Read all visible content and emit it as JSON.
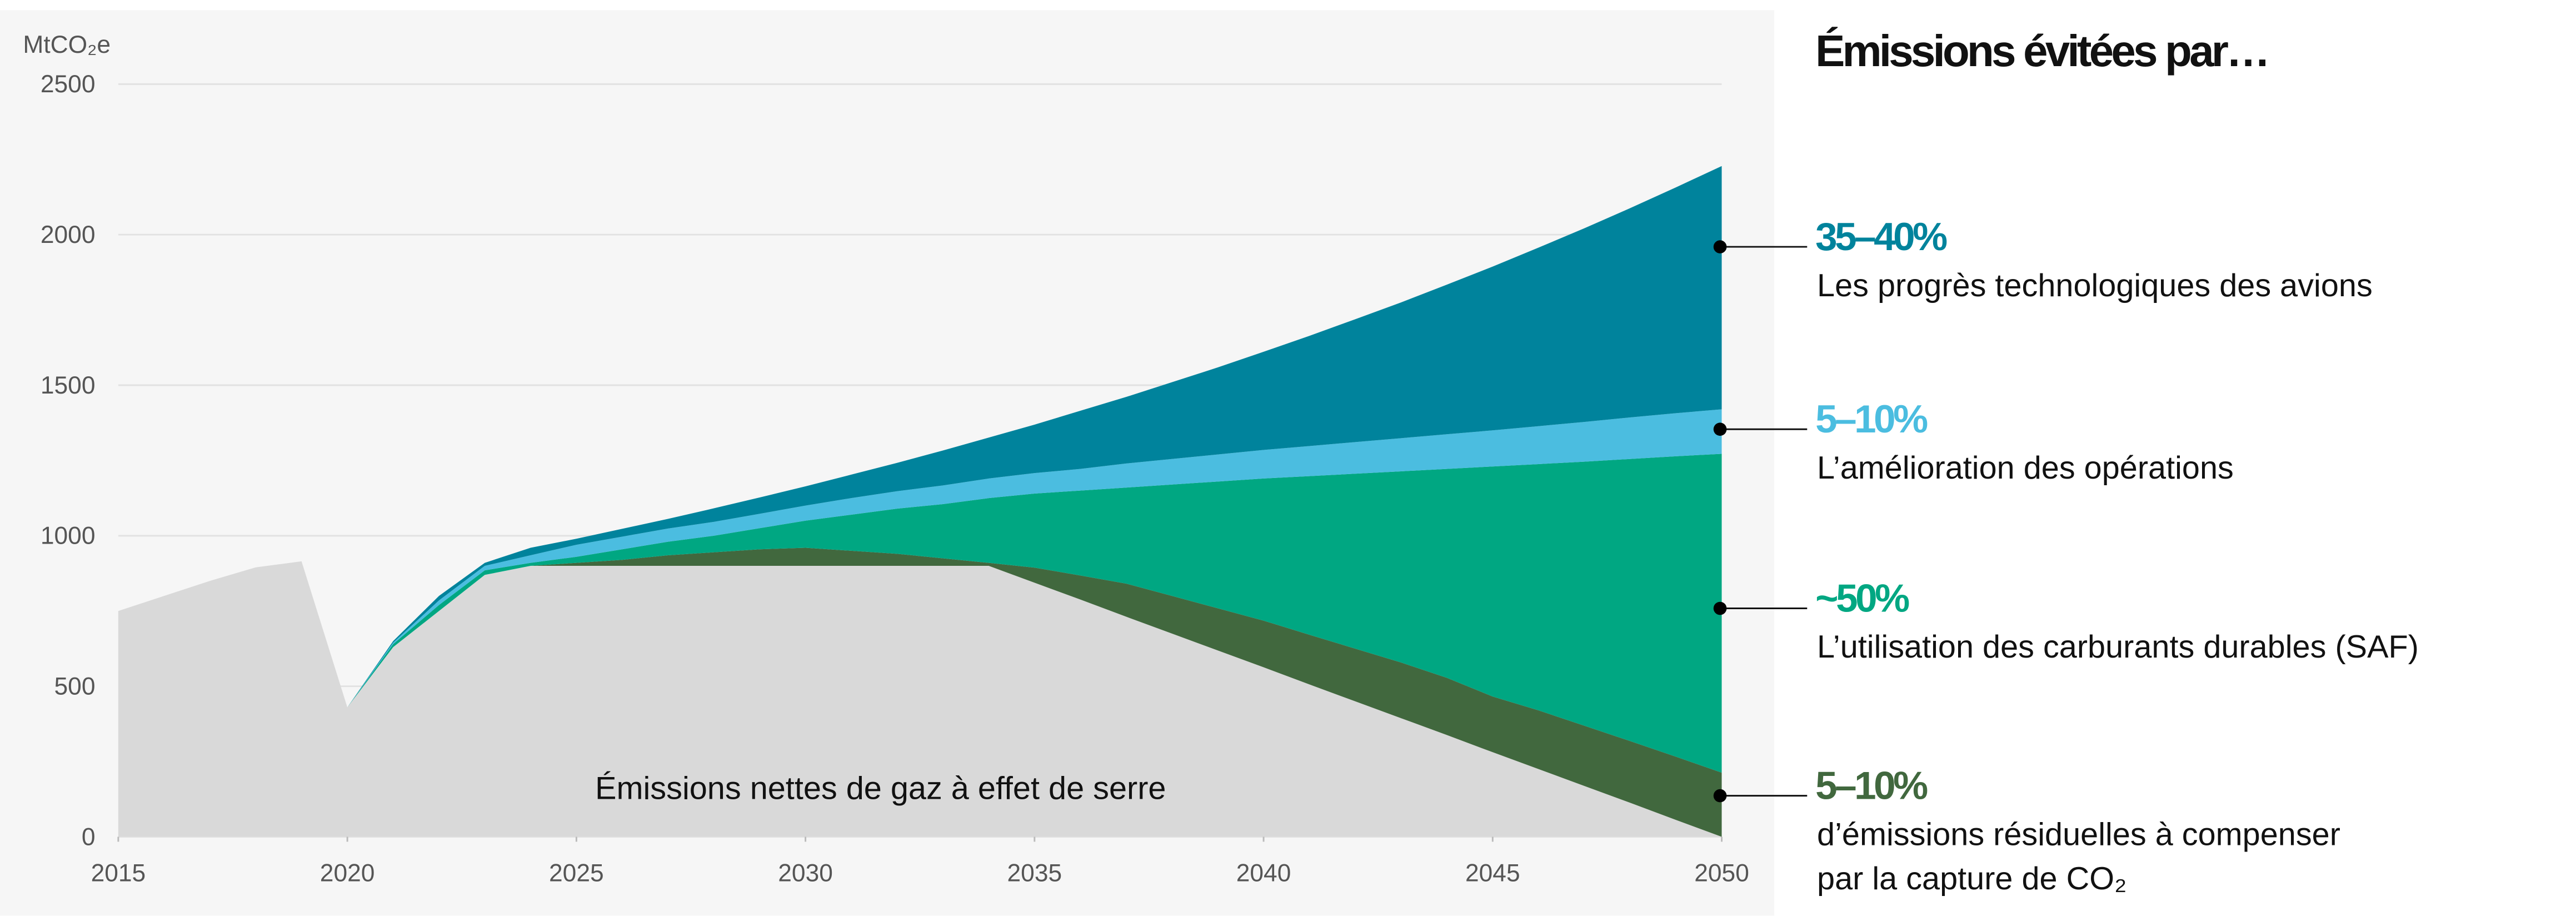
{
  "chart_data": {
    "type": "stacked_area",
    "ylabel": "MtCO₂e",
    "heading": "Émissions évitées par…",
    "x": [
      2015,
      2016,
      2017,
      2018,
      2019,
      2020,
      2021,
      2022,
      2023,
      2024,
      2025,
      2026,
      2027,
      2028,
      2029,
      2030,
      2031,
      2032,
      2033,
      2034,
      2035,
      2036,
      2037,
      2038,
      2039,
      2040,
      2041,
      2042,
      2043,
      2044,
      2045,
      2046,
      2047,
      2048,
      2049,
      2050
    ],
    "xlim": [
      2015,
      2050
    ],
    "xticks": [
      2015,
      2020,
      2025,
      2030,
      2035,
      2040,
      2045,
      2050
    ],
    "ylim": [
      0,
      2500
    ],
    "yticks": [
      0,
      500,
      1000,
      1500,
      2000,
      2500
    ],
    "grid": true,
    "series": [
      {
        "name": "Émissions nettes de gaz à effet de serre",
        "color": "#d9d9d9",
        "values": [
          750,
          800,
          850,
          895,
          915,
          430,
          630,
          750,
          870,
          900,
          900,
          900,
          900,
          900,
          900,
          900,
          900,
          900,
          900,
          900,
          844,
          788,
          731,
          675,
          619,
          563,
          506,
          450,
          394,
          338,
          281,
          225,
          169,
          113,
          56,
          0
        ]
      },
      {
        "share": "5–10%",
        "label": [
          "d’émissions résiduelles à compenser",
          "par la capture de CO₂"
        ],
        "color": "#41683e",
        "values": [
          0,
          0,
          0,
          0,
          0,
          0,
          0,
          0,
          0,
          0,
          10,
          20,
          35,
          45,
          55,
          60,
          50,
          40,
          25,
          10,
          50,
          80,
          110,
          125,
          140,
          155,
          165,
          175,
          185,
          190,
          185,
          195,
          200,
          205,
          210,
          213
        ]
      },
      {
        "share": "~50%",
        "label": [
          "L’utilisation des carburants durables (SAF)"
        ],
        "color": "#00a782",
        "values": [
          0,
          0,
          0,
          0,
          0,
          0,
          10,
          20,
          15,
          10,
          20,
          35,
          45,
          55,
          70,
          90,
          120,
          150,
          180,
          215,
          246,
          282,
          319,
          370,
          421,
          472,
          527,
          581,
          635,
          694,
          764,
          818,
          877,
          937,
          998,
          1059
        ]
      },
      {
        "share": "5–10%",
        "label": [
          "L’amélioration des opérations"
        ],
        "color": "#4bbde0",
        "values": [
          0,
          0,
          0,
          0,
          0,
          0,
          5,
          15,
          15,
          25,
          40,
          42,
          44,
          46,
          48,
          50,
          55,
          58,
          62,
          65,
          68,
          72,
          80,
          85,
          90,
          95,
          100,
          105,
          110,
          115,
          120,
          126,
          132,
          138,
          143,
          148
        ]
      },
      {
        "share": "35–40%",
        "label": [
          "Les progrès technologiques des avions"
        ],
        "color": "#00839c",
        "values": [
          0,
          0,
          0,
          0,
          0,
          0,
          5,
          15,
          10,
          25,
          20,
          26,
          32,
          45,
          54,
          64,
          78,
          94,
          116,
          136,
          161,
          193,
          221,
          255,
          289,
          326,
          366,
          408,
          451,
          497,
          544,
          593,
          643,
          695,
          750,
          808
        ]
      }
    ]
  }
}
